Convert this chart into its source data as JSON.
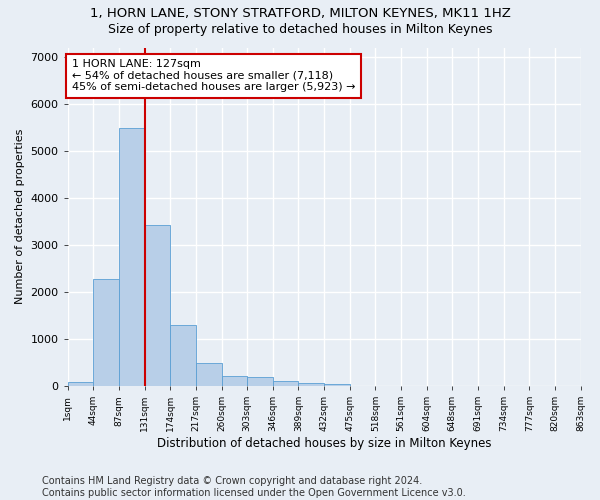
{
  "title1": "1, HORN LANE, STONY STRATFORD, MILTON KEYNES, MK11 1HZ",
  "title2": "Size of property relative to detached houses in Milton Keynes",
  "xlabel": "Distribution of detached houses by size in Milton Keynes",
  "ylabel": "Number of detached properties",
  "bar_values": [
    80,
    2280,
    5480,
    3420,
    1300,
    500,
    210,
    190,
    100,
    60,
    50,
    0,
    0,
    0,
    0,
    0,
    0,
    0,
    0,
    0
  ],
  "bin_labels": [
    "1sqm",
    "44sqm",
    "87sqm",
    "131sqm",
    "174sqm",
    "217sqm",
    "260sqm",
    "303sqm",
    "346sqm",
    "389sqm",
    "432sqm",
    "475sqm",
    "518sqm",
    "561sqm",
    "604sqm",
    "648sqm",
    "691sqm",
    "734sqm",
    "777sqm",
    "820sqm",
    "863sqm"
  ],
  "bar_color": "#b8cfe8",
  "bar_edge_color": "#5a9fd4",
  "vline_x": 3,
  "vline_color": "#cc0000",
  "annotation_text": "1 HORN LANE: 127sqm\n← 54% of detached houses are smaller (7,118)\n45% of semi-detached houses are larger (5,923) →",
  "annotation_box_color": "white",
  "annotation_box_edge_color": "#cc0000",
  "ylim": [
    0,
    7200
  ],
  "yticks": [
    0,
    1000,
    2000,
    3000,
    4000,
    5000,
    6000,
    7000
  ],
  "footnote": "Contains HM Land Registry data © Crown copyright and database right 2024.\nContains public sector information licensed under the Open Government Licence v3.0.",
  "background_color": "#e8eef5",
  "plot_background_color": "#e8eef5",
  "grid_color": "#ffffff",
  "title1_fontsize": 9.5,
  "title2_fontsize": 9,
  "footnote_fontsize": 7,
  "annot_fontsize": 8
}
